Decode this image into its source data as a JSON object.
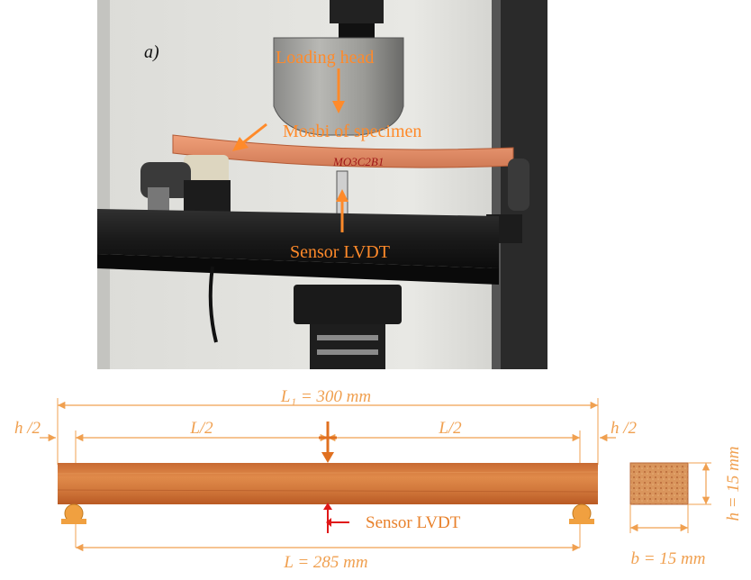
{
  "photo": {
    "panel_label": "a)",
    "loading_head_label": "Loading head",
    "specimen_label": "Moabi of specimen",
    "sensor_label": "Sensor LVDT",
    "specimen_marking": "MO3C2B1"
  },
  "diagram": {
    "total_length_label": "L₁ = 300 mm",
    "overhang_left_label": "h /2",
    "overhang_right_label": "h /2",
    "half_span_left_label": "L/2",
    "half_span_right_label": "L/2",
    "span_label": "L = 285 mm",
    "sensor_label": "Sensor LVDT",
    "height_label": "h = 15 mm",
    "width_label": "b = 15 mm"
  },
  "colors": {
    "annotation": "#f0a050",
    "photo_annotation": "#ff8a2a",
    "wood_light": "#e08a4a",
    "wood_dark": "#b95a24",
    "sensor_arrow": "#e01818"
  }
}
